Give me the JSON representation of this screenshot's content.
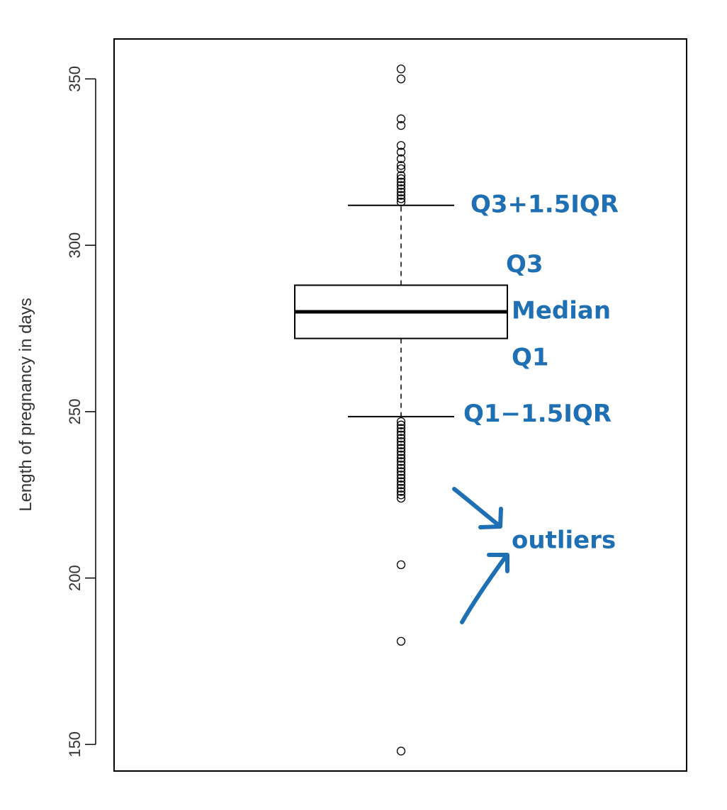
{
  "chart_data": {
    "type": "boxplot",
    "ylabel": "Length of pregnancy in days",
    "ylim": [
      142,
      362
    ],
    "y_ticks": [
      150,
      200,
      250,
      300,
      350
    ],
    "grid": false,
    "box": {
      "q1": 272,
      "median": 280,
      "q3": 288,
      "whisker_low": 248.5,
      "whisker_high": 312
    },
    "outliers": [
      353,
      350,
      338,
      336,
      330,
      328,
      326,
      324,
      323,
      321,
      320,
      319,
      318,
      317,
      316,
      315,
      314,
      313,
      247,
      246,
      245,
      244,
      243,
      242,
      241,
      240,
      239,
      238,
      237,
      236,
      235,
      234,
      233,
      232,
      231,
      230,
      229,
      228,
      227,
      226,
      225,
      224,
      204,
      181,
      148
    ],
    "annotations": [
      {
        "text": "Q3+1.5IQR",
        "y": 312
      },
      {
        "text": "Q3",
        "y": 294
      },
      {
        "text": "Median",
        "y": 280
      },
      {
        "text": "Q1",
        "y": 266
      },
      {
        "text": "Q1−1.5IQR",
        "y": 249
      },
      {
        "text": "outliers",
        "y": 211
      }
    ],
    "annotation_color": "#1f6fb4"
  }
}
